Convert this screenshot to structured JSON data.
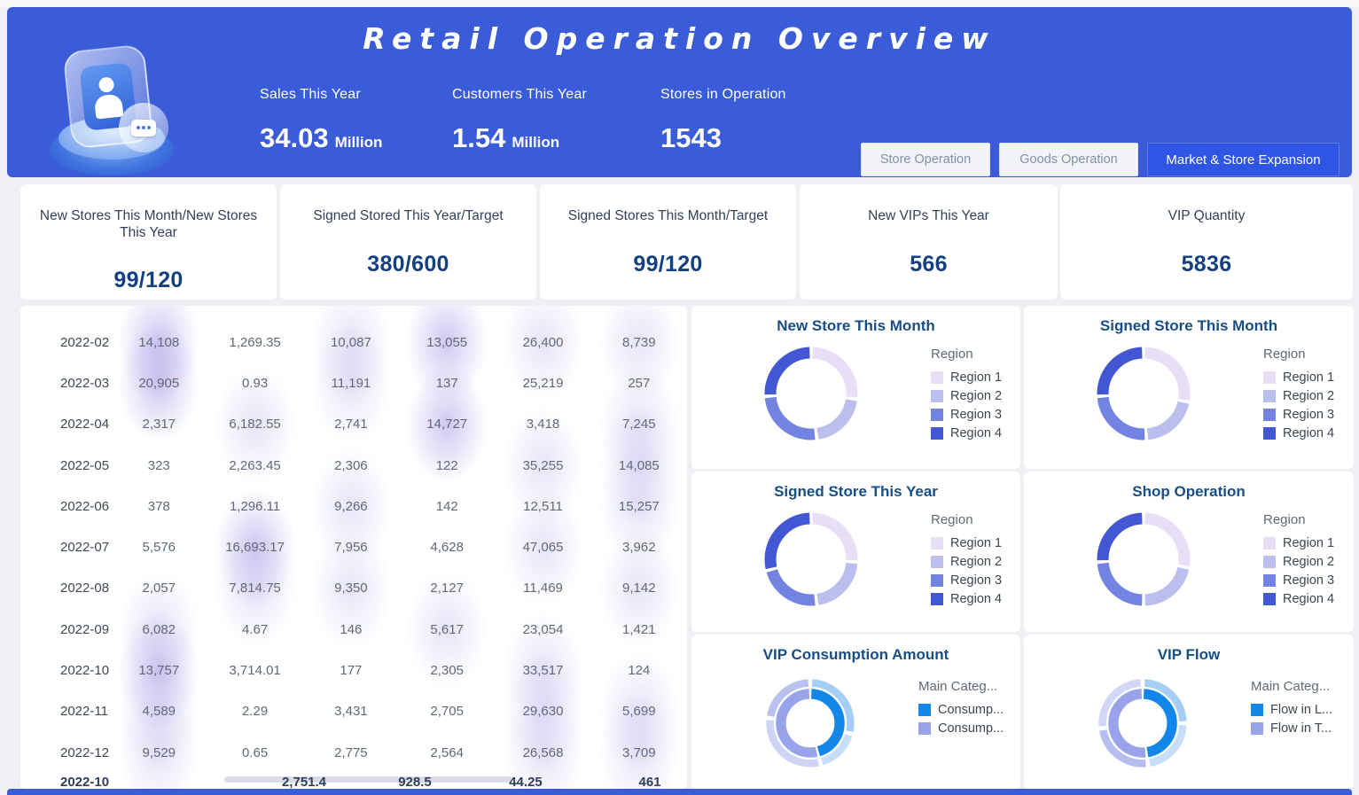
{
  "header": {
    "title": "Retail Operation Overview",
    "stats": [
      {
        "label": "Sales This Year",
        "value": "34.03",
        "unit": "Million"
      },
      {
        "label": "Customers This Year",
        "value": "1.54",
        "unit": "Million"
      },
      {
        "label": "Stores in Operation",
        "value": "1543",
        "unit": ""
      }
    ],
    "tabs": [
      {
        "label": "Store Operation",
        "active": false
      },
      {
        "label": "Goods Operation",
        "active": false
      },
      {
        "label": "Market & Store Expansion",
        "active": true
      }
    ]
  },
  "kpi_cards": [
    {
      "title": "New Stores This Month/New Stores This Year",
      "value": "99/120"
    },
    {
      "title": "Signed Stored This Year/Target",
      "value": "380/600"
    },
    {
      "title": "Signed Stores This Month/Target",
      "value": "99/120"
    },
    {
      "title": "New VIPs This Year",
      "value": "566"
    },
    {
      "title": "VIP Quantity",
      "value": "5836"
    }
  ],
  "colors": {
    "header_blue": "#3a5cd8",
    "active_tab_blue": "#2e55e4",
    "navy_value": "#14407f",
    "chart_title": "#174e85",
    "region_palette": [
      "#e8def5",
      "#babfee",
      "#7383e1",
      "#4356d3"
    ],
    "vip_bright_blue": "#1287e9",
    "vip_periwinkle": "#98a3ea",
    "table_glow": "#a392e4"
  },
  "chart_data": [
    {
      "type": "table",
      "title": "",
      "columns": [],
      "rows": [
        {
          "month": "2022-02",
          "values": [
            "14,108",
            "1,269.35",
            "10,087",
            "13,055",
            "26,400",
            "8,739"
          ],
          "highlights": [
            2,
            0,
            1,
            2,
            1,
            1
          ]
        },
        {
          "month": "2022-03",
          "values": [
            "20,905",
            "0.93",
            "11,191",
            "137",
            "25,219",
            "257"
          ],
          "highlights": [
            2,
            0,
            1,
            0,
            0,
            0
          ]
        },
        {
          "month": "2022-04",
          "values": [
            "2,317",
            "6,182.55",
            "2,741",
            "14,727",
            "3,418",
            "7,245"
          ],
          "highlights": [
            0,
            1,
            0,
            2,
            0,
            1
          ]
        },
        {
          "month": "2022-05",
          "values": [
            "323",
            "2,263.45",
            "2,306",
            "122",
            "35,255",
            "14,085"
          ],
          "highlights": [
            0,
            0,
            0,
            0,
            1,
            1
          ]
        },
        {
          "month": "2022-06",
          "values": [
            "378",
            "1,296.11",
            "9,266",
            "142",
            "12,511",
            "15,257"
          ],
          "highlights": [
            0,
            0,
            1,
            0,
            0,
            1
          ]
        },
        {
          "month": "2022-07",
          "values": [
            "5,576",
            "16,693.17",
            "7,956",
            "4,628",
            "47,065",
            "3,962"
          ],
          "highlights": [
            0,
            2,
            0,
            0,
            1,
            0
          ]
        },
        {
          "month": "2022-08",
          "values": [
            "2,057",
            "7,814.75",
            "9,350",
            "2,127",
            "11,469",
            "9,142"
          ],
          "highlights": [
            0,
            1,
            1,
            0,
            0,
            1
          ]
        },
        {
          "month": "2022-09",
          "values": [
            "6,082",
            "4.67",
            "146",
            "5,617",
            "23,054",
            "1,421"
          ],
          "highlights": [
            1,
            0,
            0,
            1,
            0,
            0
          ]
        },
        {
          "month": "2022-10",
          "values": [
            "13,757",
            "3,714.01",
            "177",
            "2,305",
            "33,517",
            "124"
          ],
          "highlights": [
            2,
            0,
            0,
            0,
            1,
            0
          ]
        },
        {
          "month": "2022-11",
          "values": [
            "4,589",
            "2.29",
            "3,431",
            "2,705",
            "29,630",
            "5,699"
          ],
          "highlights": [
            1,
            0,
            0,
            0,
            1,
            1
          ]
        },
        {
          "month": "2022-12",
          "values": [
            "9,529",
            "0.65",
            "2,775",
            "2,564",
            "26,568",
            "3,709"
          ],
          "highlights": [
            1,
            0,
            0,
            0,
            1,
            1
          ]
        }
      ],
      "footer": {
        "label": "2022-10",
        "values": [
          "2,751.4",
          "928.5",
          "44.25",
          "461"
        ]
      }
    },
    {
      "type": "donut",
      "title": "New Store This Month",
      "legend_title": "Region",
      "legend_position": "right",
      "labels": [
        "Region 1",
        "Region 2",
        "Region 3",
        "Region 4"
      ],
      "values": [
        27,
        21,
        26,
        26
      ],
      "segment_colors": [
        "#e8def5",
        "#babfee",
        "#7383e1",
        "#4356d3"
      ]
    },
    {
      "type": "donut",
      "title": "Signed Store This Month",
      "legend_title": "Region",
      "legend_position": "right",
      "labels": [
        "Region 1",
        "Region 2",
        "Region 3",
        "Region 4"
      ],
      "values": [
        28,
        21,
        25,
        26
      ],
      "segment_colors": [
        "#e8def5",
        "#babfee",
        "#7383e1",
        "#4356d3"
      ]
    },
    {
      "type": "donut",
      "title": "Signed Store This Year",
      "legend_title": "Region",
      "legend_position": "right",
      "labels": [
        "Region 1",
        "Region 2",
        "Region 3",
        "Region 4"
      ],
      "values": [
        26,
        22,
        23,
        29
      ],
      "segment_colors": [
        "#e8def5",
        "#babfee",
        "#7383e1",
        "#4356d3"
      ]
    },
    {
      "type": "donut",
      "title": "Shop Operation",
      "legend_title": "Region",
      "legend_position": "right",
      "labels": [
        "Region 1",
        "Region 2",
        "Region 3",
        "Region 4"
      ],
      "values": [
        28,
        22,
        24,
        26
      ],
      "segment_colors": [
        "#e8def5",
        "#babfee",
        "#7383e1",
        "#4356d3"
      ]
    },
    {
      "type": "donut-2ring",
      "title": "VIP Consumption Amount",
      "legend_title": "Main Categ...",
      "legend_position": "right",
      "labels": [
        "Consump...",
        "Consump..."
      ],
      "legend_colors": [
        "#1287e9",
        "#98a3ea"
      ],
      "inner": {
        "values": [
          46,
          54
        ],
        "colors": [
          "#1287e9",
          "#98a3ea"
        ]
      },
      "outer": {
        "values": [
          29,
          17,
          31,
          23
        ],
        "colors": [
          "#a6cdf4",
          "#c6def8",
          "#ced4f6",
          "#b9c1f0"
        ]
      }
    },
    {
      "type": "donut-2ring",
      "title": "VIP Flow",
      "legend_title": "Main Categ...",
      "legend_position": "right",
      "labels": [
        "Flow in L...",
        "Flow in T..."
      ],
      "legend_colors": [
        "#1287e9",
        "#98a3ea"
      ],
      "inner": {
        "values": [
          48,
          52
        ],
        "colors": [
          "#1287e9",
          "#98a3ea"
        ]
      },
      "outer": {
        "values": [
          25,
          23,
          25,
          27
        ],
        "colors": [
          "#a6cdf4",
          "#c6def8",
          "#b6bdef",
          "#d2d6f7"
        ]
      }
    }
  ]
}
